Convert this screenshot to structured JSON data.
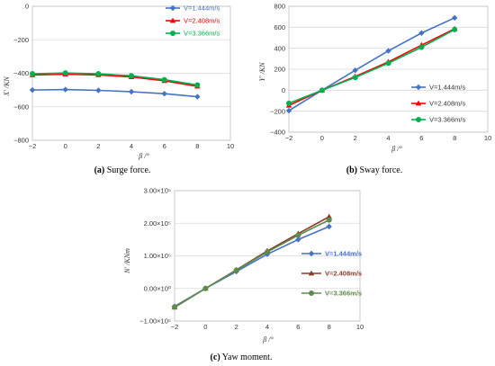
{
  "chart_data": [
    {
      "id": "surge",
      "type": "line",
      "caption_label": "(a)",
      "caption_text": " Surge force.",
      "ylabel": "X′ /KN",
      "xlabel": "β /°",
      "xlim": [
        -2,
        10
      ],
      "ylim": [
        -800,
        0
      ],
      "xticks": [
        "−2",
        "0",
        "2",
        "4",
        "6",
        "8",
        "10"
      ],
      "yticks": [
        "0",
        "−200",
        "−400",
        "−600",
        "−800"
      ],
      "grid": true,
      "legend_position": "top-right",
      "x": [
        -2,
        0,
        2,
        4,
        6,
        8
      ],
      "series": [
        {
          "name": "V=1.444m/s",
          "color": "#4472c4",
          "marker": "diamond",
          "values": [
            -500,
            -497,
            -502,
            -510,
            -522,
            -540
          ]
        },
        {
          "name": "V=2.408m/s",
          "color": "#ff0000",
          "marker": "triangle",
          "values": [
            -410,
            -406,
            -410,
            -422,
            -445,
            -478
          ]
        },
        {
          "name": "V=3.366m/s",
          "color": "#00b050",
          "marker": "circle",
          "values": [
            -403,
            -398,
            -403,
            -415,
            -438,
            -470
          ]
        }
      ]
    },
    {
      "id": "sway",
      "type": "line",
      "caption_label": "(b)",
      "caption_text": " Sway force.",
      "ylabel": "Y′ /KN",
      "xlabel": "β /°",
      "xlim": [
        -2,
        10
      ],
      "ylim": [
        -400,
        800
      ],
      "xticks": [
        "−2",
        "0",
        "2",
        "4",
        "6",
        "8",
        "10"
      ],
      "yticks": [
        "800",
        "600",
        "400",
        "200",
        "0",
        "−200",
        "−400"
      ],
      "grid": true,
      "legend_position": "right",
      "x": [
        -2,
        0,
        2,
        4,
        6,
        8
      ],
      "series": [
        {
          "name": "V=1.444m/s",
          "color": "#4472c4",
          "marker": "diamond",
          "values": [
            -195,
            0,
            190,
            375,
            545,
            690
          ]
        },
        {
          "name": "V=2.408m/s",
          "color": "#ff0000",
          "marker": "triangle",
          "values": [
            -145,
            0,
            130,
            270,
            430,
            585
          ]
        },
        {
          "name": "V=3.366m/s",
          "color": "#00b050",
          "marker": "circle",
          "values": [
            -125,
            0,
            122,
            258,
            410,
            578
          ]
        }
      ]
    },
    {
      "id": "yaw",
      "type": "line",
      "caption_label": "(c)",
      "caption_text": " Yaw moment.",
      "ylabel": "N′ /KNm",
      "xlabel": "β /°",
      "xlim": [
        -2,
        10
      ],
      "ylim": [
        -100000,
        300000
      ],
      "xticks": [
        "−2",
        "0",
        "2",
        "4",
        "6",
        "8",
        "10"
      ],
      "yticks": [
        "3.00×10⁵",
        "2.00×10⁵",
        "1.00×10⁵",
        "0.00×10⁰",
        "−1.00×10⁵"
      ],
      "grid": true,
      "legend_position": "right",
      "x": [
        -2,
        0,
        2,
        4,
        6,
        8
      ],
      "series": [
        {
          "name": "V=1.444m/s",
          "color": "#4472c4",
          "marker": "diamond",
          "values": [
            -55000,
            0,
            52000,
            105000,
            150000,
            190000
          ]
        },
        {
          "name": "V=2.408m/s",
          "color": "#8b3a2a",
          "marker": "triangle",
          "values": [
            -58000,
            0,
            57000,
            115000,
            168000,
            220000
          ]
        },
        {
          "name": "V=3.366m/s",
          "color": "#5b8c4a",
          "marker": "circle",
          "values": [
            -57000,
            0,
            56000,
            112000,
            163000,
            210000
          ]
        }
      ]
    }
  ]
}
